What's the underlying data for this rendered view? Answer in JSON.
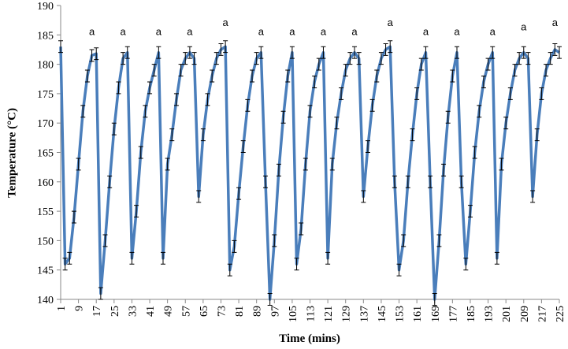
{
  "chart_data": {
    "type": "line",
    "x_label": "Time (mins)",
    "y_label": "Temperature (°C)",
    "x": [
      1,
      3,
      5,
      7,
      9,
      11,
      13,
      15,
      17,
      19,
      21,
      23,
      25,
      27,
      29,
      31,
      33,
      35,
      37,
      39,
      41,
      43,
      45,
      47,
      49,
      51,
      53,
      55,
      57,
      59,
      61,
      63,
      65,
      67,
      69,
      71,
      73,
      75,
      77,
      79,
      81,
      83,
      85,
      87,
      89,
      91,
      93,
      95,
      97,
      99,
      101,
      103,
      105,
      107,
      109,
      111,
      113,
      115,
      117,
      119,
      121,
      123,
      125,
      127,
      129,
      131,
      133,
      135,
      137,
      139,
      141,
      143,
      145,
      147,
      149,
      151,
      153,
      155,
      157,
      159,
      161,
      163,
      165,
      167,
      169,
      171,
      173,
      175,
      177,
      179,
      181,
      183,
      185,
      187,
      189,
      191,
      193,
      195,
      197,
      199,
      201,
      203,
      205,
      207,
      209,
      211,
      213,
      215,
      217,
      219,
      221,
      223,
      225
    ],
    "values": [
      183,
      146,
      147,
      154,
      163,
      172,
      178,
      181.5,
      181.8,
      141,
      150,
      160,
      169,
      176,
      181,
      182,
      147,
      155,
      165,
      172,
      176,
      179,
      182,
      147,
      163,
      168,
      174,
      179,
      181,
      182,
      181,
      157.5,
      168,
      174,
      178,
      181,
      182.5,
      183,
      145,
      149,
      158,
      166,
      173,
      178,
      181,
      182,
      160,
      140,
      150,
      162,
      171,
      178,
      182,
      146,
      152,
      163,
      172,
      177,
      180,
      182,
      147,
      163,
      170,
      175,
      179,
      181,
      182,
      181,
      157.5,
      166,
      173,
      178,
      181,
      182.5,
      183,
      160,
      145,
      150,
      160,
      168,
      175,
      180,
      182,
      160,
      140,
      150,
      162,
      171,
      178,
      182,
      160,
      146,
      155,
      165,
      172,
      177,
      180,
      182,
      147,
      163,
      170,
      175,
      179,
      181,
      182,
      181,
      157.5,
      168,
      175,
      179,
      181,
      182.5,
      182
    ],
    "errors": [
      1,
      1,
      1,
      1,
      1,
      1,
      1,
      1,
      1,
      1,
      1,
      1,
      1,
      1,
      1,
      1,
      1,
      1,
      1,
      1,
      1,
      1,
      1,
      1,
      1,
      1,
      1,
      1,
      1,
      1,
      1,
      1,
      1,
      1,
      1,
      1,
      1,
      1,
      1,
      1,
      1,
      1,
      1,
      1,
      1,
      1,
      1,
      1,
      1,
      1,
      1,
      1,
      1,
      1,
      1,
      1,
      1,
      1,
      1,
      1,
      1,
      1,
      1,
      1,
      1,
      1,
      1,
      1,
      1,
      1,
      1,
      1,
      1,
      1,
      1,
      1,
      1,
      1,
      1,
      1,
      1,
      1,
      1,
      1,
      1,
      1,
      1,
      1,
      1,
      1,
      1,
      1,
      1,
      1,
      1,
      1,
      1,
      1,
      1,
      1,
      1,
      1,
      1,
      1,
      1,
      1,
      1,
      1,
      1,
      1,
      1,
      1,
      1
    ],
    "color": "#4a7ebb",
    "xlim": [
      1,
      225
    ],
    "xticks": [
      1,
      9,
      17,
      25,
      33,
      41,
      49,
      57,
      65,
      73,
      81,
      89,
      97,
      105,
      113,
      121,
      129,
      137,
      145,
      153,
      161,
      169,
      177,
      185,
      193,
      201,
      209,
      217,
      225
    ],
    "ylim": [
      140,
      190
    ],
    "yticks": [
      140,
      145,
      150,
      155,
      160,
      165,
      170,
      175,
      180,
      185,
      190
    ],
    "annotations": [
      {
        "text": "a",
        "x": 15,
        "y": 185
      },
      {
        "text": "a",
        "x": 29,
        "y": 185
      },
      {
        "text": "a",
        "x": 45,
        "y": 185
      },
      {
        "text": "a",
        "x": 59,
        "y": 185
      },
      {
        "text": "a",
        "x": 75,
        "y": 186.5
      },
      {
        "text": "a",
        "x": 91,
        "y": 185
      },
      {
        "text": "a",
        "x": 105,
        "y": 185
      },
      {
        "text": "a",
        "x": 119,
        "y": 185
      },
      {
        "text": "a",
        "x": 133,
        "y": 185
      },
      {
        "text": "a",
        "x": 149,
        "y": 186.5
      },
      {
        "text": "a",
        "x": 165,
        "y": 185
      },
      {
        "text": "a",
        "x": 179,
        "y": 185
      },
      {
        "text": "a",
        "x": 195,
        "y": 185
      },
      {
        "text": "a",
        "x": 209,
        "y": 185.8
      },
      {
        "text": "a",
        "x": 223,
        "y": 186.5
      }
    ]
  }
}
